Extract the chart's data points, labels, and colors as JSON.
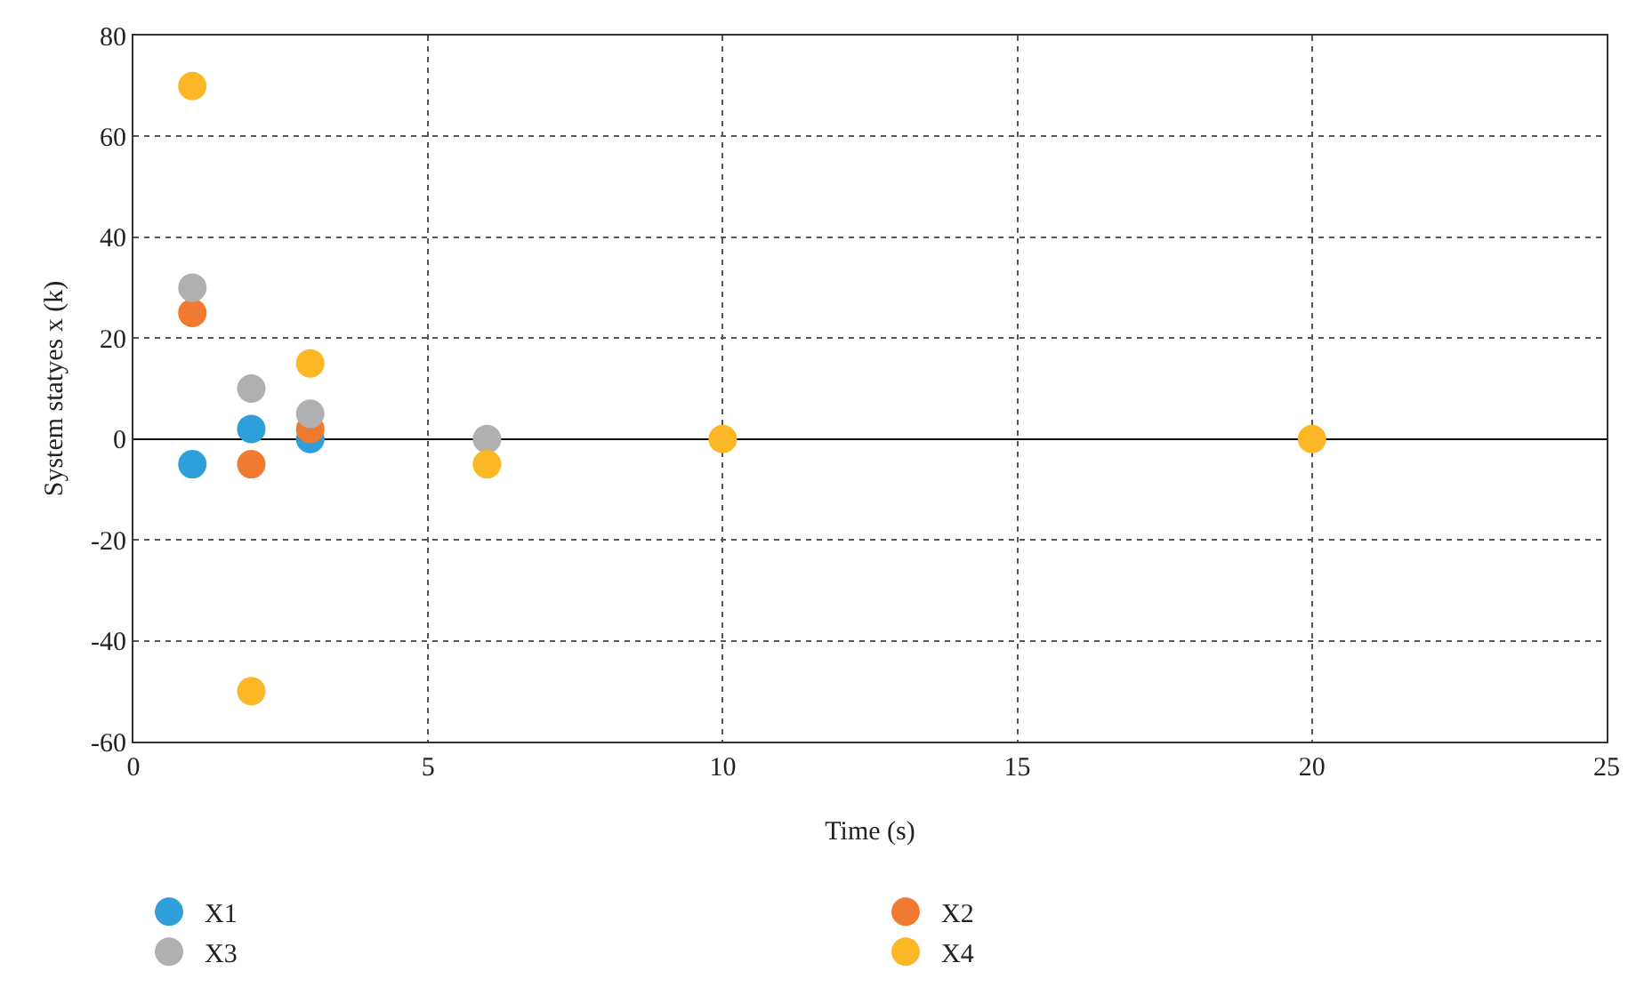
{
  "chart_data": {
    "type": "scatter",
    "xlabel": "Time (s)",
    "ylabel": "System statyes x (k)",
    "xlim": [
      0,
      25
    ],
    "xticks": [
      0,
      5,
      10,
      15,
      20,
      25
    ],
    "ylim": [
      -60,
      80
    ],
    "yticks": [
      -60,
      -40,
      -20,
      0,
      20,
      40,
      60,
      80
    ],
    "grid": true,
    "legend": "bottom",
    "marker": "circle",
    "series": [
      {
        "name": "X1",
        "color": "#2e9fd8",
        "x": [
          1,
          2,
          3
        ],
        "values": [
          -5,
          2,
          0
        ]
      },
      {
        "name": "X2",
        "color": "#f07a30",
        "x": [
          1,
          2,
          3
        ],
        "values": [
          25,
          -5,
          2
        ]
      },
      {
        "name": "X3",
        "color": "#b0b0b0",
        "x": [
          1,
          2,
          3,
          6
        ],
        "values": [
          30,
          10,
          5,
          0
        ]
      },
      {
        "name": "X4",
        "color": "#fbb726",
        "x": [
          1,
          2,
          3,
          6,
          10,
          20
        ],
        "values": [
          70,
          -50,
          15,
          -5,
          0,
          0
        ]
      }
    ]
  }
}
